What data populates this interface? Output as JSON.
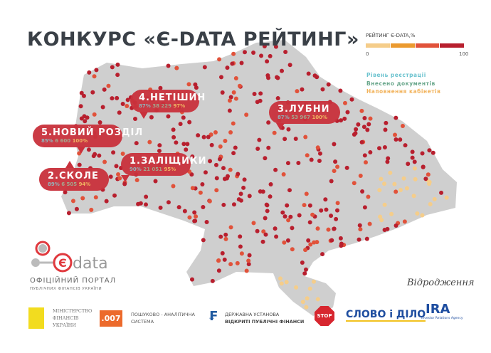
{
  "title": "КОНКУРС «Є-DATA РЕЙТИНГ»",
  "legend": {
    "title": "РЕЙТИНГ Є-DATA,%",
    "min": "0",
    "max": "100",
    "scale_colors": [
      "#f5cd8a",
      "#eb9a2f",
      "#e1523a",
      "#b81f2e"
    ],
    "keys": [
      {
        "label": "Рівень реєстрації",
        "color": "#6cc3cf"
      },
      {
        "label": "Внесено документів",
        "color": "#6aa78c"
      },
      {
        "label": "Наповнення кабінетів",
        "color": "#f2b35c"
      }
    ]
  },
  "callouts": [
    {
      "name": "4.НЕТІШИН",
      "registration": "87%",
      "documents": "38 229",
      "filling": "97%"
    },
    {
      "name": "5.НОВИЙ РОЗДІЛ",
      "registration": "85%",
      "documents": "6 600",
      "filling": "100%"
    },
    {
      "name": "1.ЗАЛІЩИКИ",
      "registration": "90%",
      "documents": "21 051",
      "filling": "95%"
    },
    {
      "name": "2.СКОЛЕ",
      "registration": "89%",
      "documents": "6 505",
      "filling": "94%"
    },
    {
      "name": "3.ЛУБНИ",
      "registration": "87%",
      "documents": "53 967",
      "filling": "100%"
    }
  ],
  "colors": {
    "map_fill": "#cfcfcf",
    "dot_dark": "#b81f2e",
    "dot_orange": "#e1523a",
    "dot_light": "#f5cd8a",
    "bubble": "#c9313c"
  },
  "edata": {
    "logo_text": "data",
    "logo_letter": "Є",
    "portal": "ОФІЦІЙНИЙ ПОРТАЛ",
    "portal_sub": "ПУБЛІЧНИХ ФІНАНСІВ УКРАЇНИ"
  },
  "partners": {
    "minfin": [
      "МІНІСТЕРСТВО",
      "ФІНАНСІВ",
      "УКРАЇНИ"
    ],
    "s007": {
      "badge": ".007",
      "line1": "ПОШУКОВО - АНАЛІТИЧНА",
      "line2": "СИСТЕМА"
    },
    "openfin": {
      "line1": "ДЕРЖАВНА УСТАНОВА",
      "line2": "ВІДКРИТІ ПУБЛІЧНІ ФІНАНСИ"
    },
    "stop": "STOP",
    "slovo": "СЛОВО і ДІЛО",
    "ira": {
      "logo": "IRA",
      "sub": "Investor Relations Agency"
    },
    "vidrodzhennya": "Відродження"
  }
}
